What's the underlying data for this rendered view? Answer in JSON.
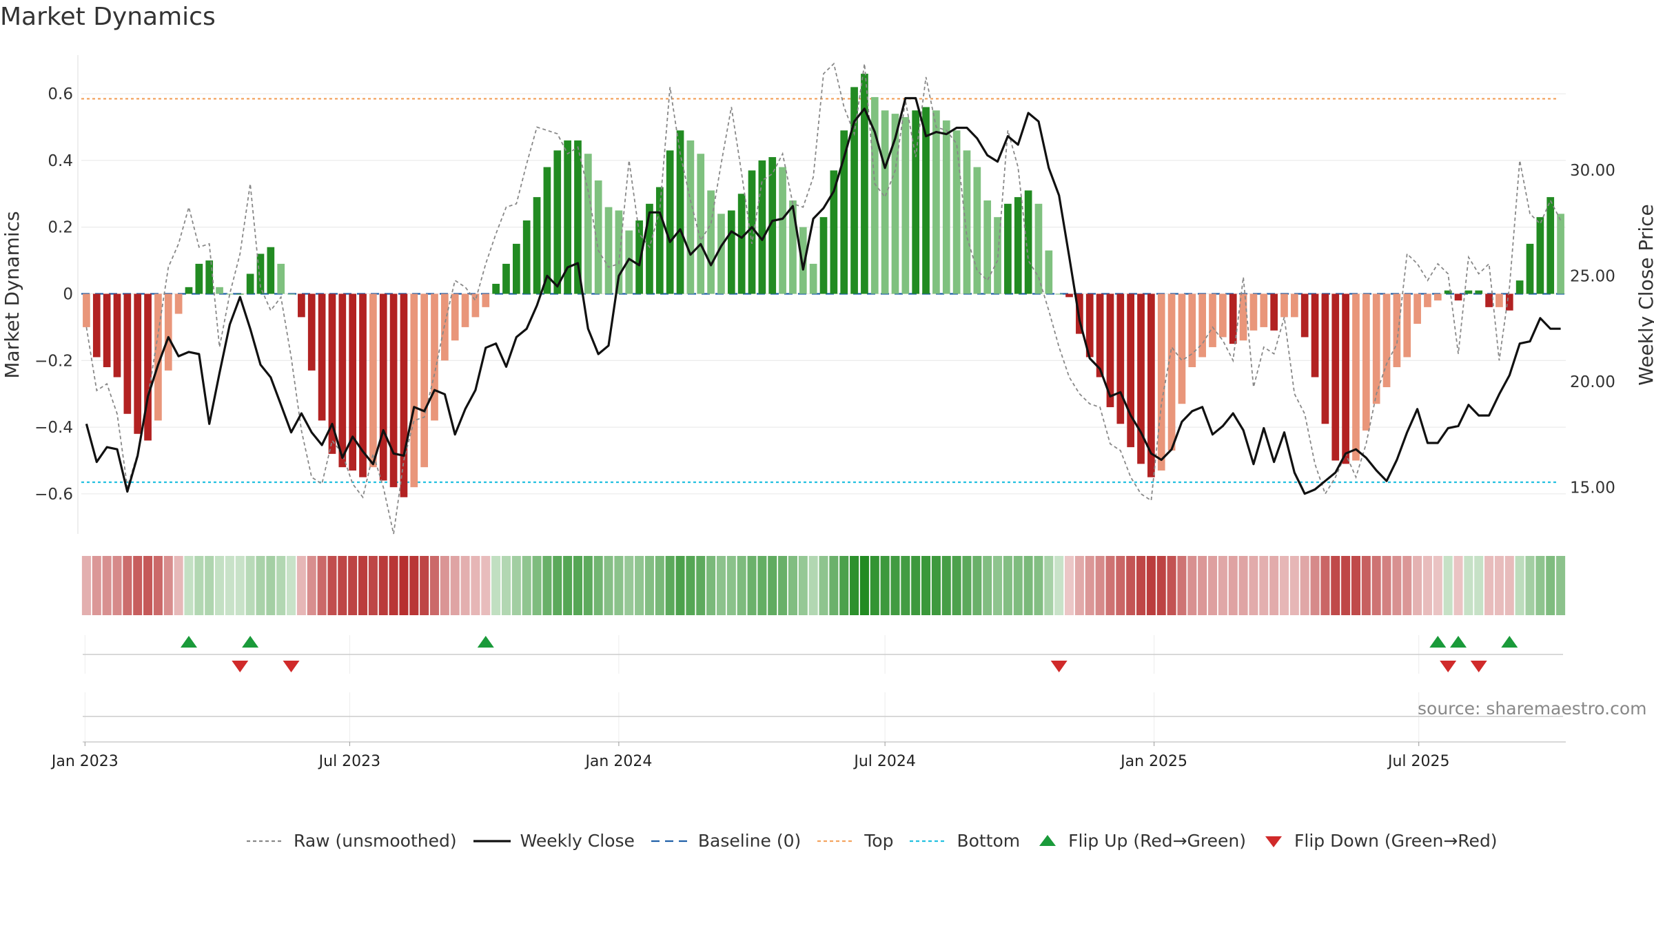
{
  "title": "Market Dynamics",
  "source": "source: sharemaestro.com",
  "colors": {
    "green_strong": "#228B22",
    "green_light": "#7FC17F",
    "red_strong": "#B22222",
    "red_light": "#E9967A",
    "raw": "#888888",
    "close": "#111111",
    "baseline": "#1f5fa8",
    "top": "#F4A460",
    "bottom": "#22C0E0",
    "flip_up": "#1a9a3a",
    "flip_down": "#d02a2a"
  },
  "legend": [
    {
      "key": "raw",
      "label": "Raw (unsmoothed)",
      "icon": "dotted-line"
    },
    {
      "key": "close",
      "label": "Weekly Close",
      "icon": "solid-line"
    },
    {
      "key": "baseline",
      "label": "Baseline (0)",
      "icon": "dashed-line"
    },
    {
      "key": "top",
      "label": "Top",
      "icon": "dotted-line"
    },
    {
      "key": "bottom",
      "label": "Bottom",
      "icon": "dotted-line"
    },
    {
      "key": "flip_up",
      "label": "Flip Up (Red→Green)",
      "icon": "triangle-up"
    },
    {
      "key": "flip_down",
      "label": "Flip Down (Green→Red)",
      "icon": "triangle-down"
    }
  ],
  "chart_data": {
    "type": "bar",
    "title": "Market Dynamics",
    "ylabel_left": "Market Dynamics",
    "ylabel_right": "Weekly Close Price",
    "xlabel": "",
    "start_date": "2023-01-02",
    "x_ticks": [
      "Jan 2023",
      "Jul 2023",
      "Jan 2024",
      "Jul 2024",
      "Jan 2025",
      "Jul 2025"
    ],
    "y_left": {
      "range": [
        -0.72,
        0.72
      ],
      "ticks": [
        -0.6,
        -0.4,
        -0.2,
        0,
        0.2,
        0.4,
        0.6
      ],
      "tick_labels": [
        "−0.6",
        "−0.4",
        "−0.2",
        "0",
        "0.2",
        "0.4",
        "0.6"
      ]
    },
    "y_right": {
      "range": [
        12.8,
        35.5
      ],
      "ticks": [
        15,
        20,
        25,
        30
      ],
      "tick_labels": [
        "15.00",
        "20.00",
        "25.00",
        "30.00"
      ]
    },
    "top_level": 0.585,
    "bottom_level": -0.565,
    "grid": true,
    "legend_position": "bottom",
    "series": [
      {
        "name": "Market Dynamics",
        "kind": "bars",
        "values": [
          -0.1,
          -0.19,
          -0.22,
          -0.25,
          -0.36,
          -0.42,
          -0.44,
          -0.38,
          -0.23,
          -0.06,
          0.02,
          0.09,
          0.1,
          0.02,
          0.0,
          0.0,
          0.06,
          0.12,
          0.14,
          0.09,
          0.0,
          -0.07,
          -0.23,
          -0.38,
          -0.48,
          -0.52,
          -0.53,
          -0.55,
          -0.52,
          -0.56,
          -0.58,
          -0.61,
          -0.58,
          -0.52,
          -0.38,
          -0.2,
          -0.14,
          -0.1,
          -0.07,
          -0.04,
          0.03,
          0.09,
          0.15,
          0.22,
          0.29,
          0.38,
          0.43,
          0.46,
          0.46,
          0.42,
          0.34,
          0.26,
          0.25,
          0.19,
          0.22,
          0.27,
          0.32,
          0.43,
          0.49,
          0.46,
          0.42,
          0.31,
          0.24,
          0.25,
          0.3,
          0.37,
          0.4,
          0.41,
          0.38,
          0.28,
          0.2,
          0.09,
          0.23,
          0.37,
          0.49,
          0.62,
          0.66,
          0.59,
          0.55,
          0.54,
          0.53,
          0.55,
          0.56,
          0.55,
          0.52,
          0.49,
          0.43,
          0.38,
          0.28,
          0.23,
          0.27,
          0.29,
          0.31,
          0.27,
          0.13,
          0.0,
          -0.01,
          -0.12,
          -0.19,
          -0.25,
          -0.34,
          -0.39,
          -0.46,
          -0.51,
          -0.55,
          -0.53,
          -0.47,
          -0.33,
          -0.22,
          -0.19,
          -0.16,
          -0.13,
          -0.15,
          -0.14,
          -0.11,
          -0.1,
          -0.11,
          -0.07,
          -0.07,
          -0.13,
          -0.25,
          -0.39,
          -0.5,
          -0.51,
          -0.5,
          -0.41,
          -0.33,
          -0.28,
          -0.22,
          -0.19,
          -0.09,
          -0.04,
          -0.02,
          0.01,
          -0.02,
          0.01,
          0.01,
          -0.04,
          -0.04,
          -0.05,
          0.04,
          0.15,
          0.23,
          0.29,
          0.24
        ]
      },
      {
        "name": "Raw (unsmoothed)",
        "kind": "line",
        "values": [
          -0.1,
          -0.29,
          -0.27,
          -0.36,
          -0.58,
          -0.48,
          -0.31,
          -0.12,
          0.08,
          0.15,
          0.26,
          0.14,
          0.15,
          -0.16,
          0.0,
          0.12,
          0.33,
          0.02,
          -0.05,
          -0.01,
          -0.19,
          -0.41,
          -0.55,
          -0.57,
          -0.44,
          -0.48,
          -0.57,
          -0.61,
          -0.48,
          -0.58,
          -0.72,
          -0.5,
          -0.38,
          -0.37,
          -0.24,
          -0.09,
          0.04,
          0.02,
          -0.02,
          0.09,
          0.18,
          0.26,
          0.27,
          0.39,
          0.5,
          0.49,
          0.48,
          0.42,
          0.44,
          0.31,
          0.13,
          0.08,
          0.09,
          0.4,
          0.18,
          0.14,
          0.25,
          0.62,
          0.42,
          0.28,
          0.16,
          0.21,
          0.39,
          0.56,
          0.36,
          0.15,
          0.34,
          0.36,
          0.42,
          0.27,
          0.26,
          0.35,
          0.66,
          0.69,
          0.56,
          0.48,
          0.69,
          0.33,
          0.29,
          0.37,
          0.58,
          0.41,
          0.65,
          0.5,
          0.49,
          0.45,
          0.17,
          0.07,
          0.04,
          0.1,
          0.49,
          0.38,
          0.1,
          0.05,
          -0.05,
          -0.16,
          -0.25,
          -0.3,
          -0.33,
          -0.34,
          -0.45,
          -0.47,
          -0.55,
          -0.6,
          -0.62,
          -0.33,
          -0.16,
          -0.2,
          -0.18,
          -0.15,
          -0.1,
          -0.14,
          -0.2,
          0.05,
          -0.28,
          -0.16,
          -0.18,
          -0.07,
          -0.3,
          -0.36,
          -0.51,
          -0.6,
          -0.55,
          -0.48,
          -0.55,
          -0.45,
          -0.3,
          -0.21,
          -0.15,
          0.12,
          0.09,
          0.04,
          0.09,
          0.06,
          -0.18,
          0.11,
          0.06,
          0.09,
          -0.2,
          0.02,
          0.4,
          0.24,
          0.21,
          0.28,
          0.22
        ]
      },
      {
        "name": "Weekly Close",
        "kind": "line",
        "values": [
          18.0,
          16.2,
          16.9,
          16.8,
          14.8,
          16.5,
          19.3,
          20.8,
          22.1,
          21.2,
          21.4,
          21.3,
          18.0,
          20.4,
          22.7,
          24.0,
          22.5,
          20.8,
          20.2,
          18.9,
          17.6,
          18.5,
          17.6,
          17.0,
          18.0,
          16.4,
          17.4,
          16.7,
          16.1,
          17.7,
          16.6,
          16.5,
          18.8,
          18.6,
          19.6,
          19.4,
          17.5,
          18.7,
          19.6,
          21.6,
          21.8,
          20.7,
          22.1,
          22.5,
          23.6,
          25.0,
          24.5,
          25.4,
          25.6,
          22.5,
          21.3,
          21.7,
          25.0,
          25.8,
          25.5,
          28.0,
          28.0,
          26.6,
          27.2,
          26.0,
          26.5,
          25.5,
          26.4,
          27.1,
          26.8,
          27.3,
          26.7,
          27.6,
          27.7,
          28.3,
          25.3,
          27.7,
          28.2,
          29.0,
          30.6,
          32.3,
          32.9,
          31.8,
          30.1,
          31.5,
          33.4,
          33.4,
          31.6,
          31.8,
          31.7,
          32.0,
          32.0,
          31.5,
          30.7,
          30.4,
          31.6,
          31.2,
          32.7,
          32.3,
          30.1,
          28.8,
          25.9,
          22.9,
          21.1,
          20.6,
          19.3,
          19.5,
          18.4,
          17.6,
          16.6,
          16.3,
          16.8,
          18.1,
          18.6,
          18.8,
          17.5,
          17.9,
          18.5,
          17.7,
          16.1,
          17.8,
          16.2,
          17.6,
          15.7,
          14.7,
          14.9,
          15.3,
          15.7,
          16.6,
          16.8,
          16.4,
          15.8,
          15.3,
          16.3,
          17.6,
          18.7,
          17.1,
          17.1,
          17.8,
          17.9,
          18.9,
          18.4,
          18.4,
          19.4,
          20.3,
          21.8,
          21.9,
          23.0,
          22.5,
          22.5
        ]
      },
      {
        "name": "Flip Up (Red→Green)",
        "kind": "markers",
        "x_week": [
          10,
          16,
          39,
          132,
          134,
          139
        ]
      },
      {
        "name": "Flip Down (Green→Red)",
        "kind": "markers",
        "x_week": [
          15,
          20,
          95,
          133,
          136
        ]
      }
    ]
  }
}
